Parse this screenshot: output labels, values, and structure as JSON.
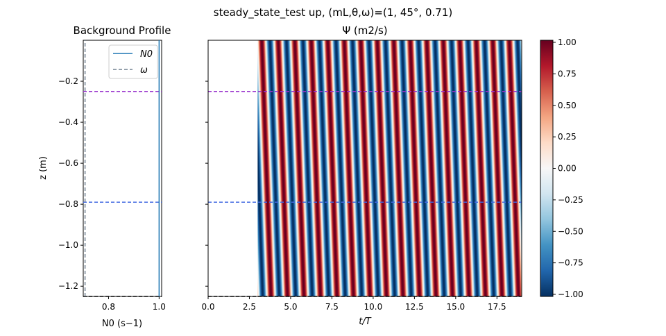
{
  "figure": {
    "suptitle": "steady_state_test up, (mL,θ,ω)=(1, 45°, 0.71)"
  },
  "chart_data": [
    {
      "type": "line",
      "title": "Background Profile",
      "xlabel": "N0 (s−1)",
      "ylabel": "z (m)",
      "xlim": [
        0.7,
        1.01
      ],
      "ylim": [
        -1.25,
        0.0
      ],
      "xticks": [
        "0.8",
        "1.0"
      ],
      "yticks": [
        "−0.2",
        "−0.4",
        "−0.6",
        "−0.8",
        "−1.0",
        "−1.2"
      ],
      "series": [
        {
          "name": "N0",
          "x": [
            1.0,
            1.0
          ],
          "y": [
            -1.25,
            0.0
          ],
          "style": "solid",
          "color": "#1f77b4"
        },
        {
          "name": "ω",
          "x": [
            0.7071,
            0.7071
          ],
          "y": [
            -1.25,
            0.0
          ],
          "style": "dashed",
          "color": "#708090"
        }
      ],
      "hlines": [
        {
          "y": -0.25,
          "color": "#9932cc",
          "style": "dashed"
        },
        {
          "y": -0.79,
          "color": "#4169e1",
          "style": "dashed"
        },
        {
          "y": -1.25,
          "color": "#000000",
          "style": "dashed"
        }
      ],
      "legend": "top-right"
    },
    {
      "type": "heatmap",
      "title": "Ψ (m2/s)",
      "xlabel": "t/T",
      "xlim": [
        0.0,
        19.0
      ],
      "ylim": [
        -1.25,
        0.0
      ],
      "xticks": [
        "0.0",
        "2.5",
        "5.0",
        "7.5",
        "10.0",
        "12.5",
        "15.0",
        "17.5"
      ],
      "signal_start": 3.0,
      "wave": {
        "omega": 0.71,
        "m": 1.0
      },
      "hlines": [
        {
          "y": -0.25,
          "color": "#9932cc",
          "style": "dashed"
        },
        {
          "y": -0.79,
          "color": "#4169e1",
          "style": "dashed"
        },
        {
          "y": -1.25,
          "color": "#000000",
          "style": "dashed"
        }
      ],
      "colorbar": {
        "colormap": "RdBu_r",
        "range": [
          -1.0,
          1.0
        ],
        "ticks": [
          "1.00",
          "0.75",
          "0.50",
          "0.25",
          "0.00",
          "−0.25",
          "−0.50",
          "−0.75",
          "−1.00"
        ]
      }
    }
  ]
}
